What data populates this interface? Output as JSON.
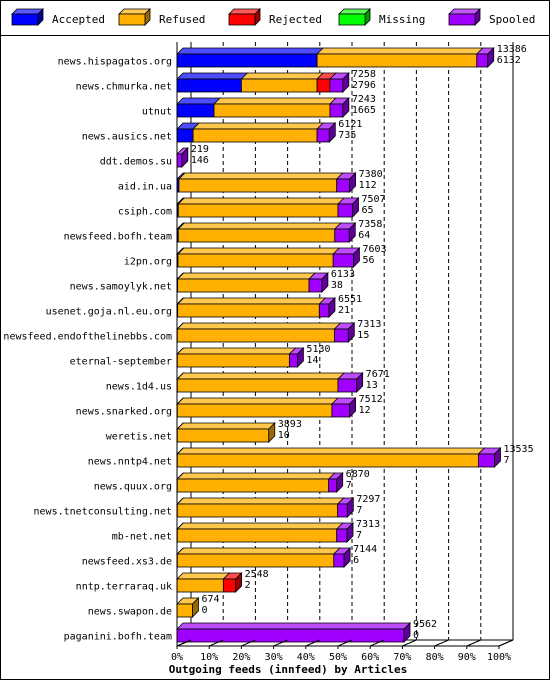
{
  "chart_data": {
    "type": "bar",
    "orientation": "horizontal",
    "stacked": true,
    "percent_scale": true,
    "xlabel": "Outgoing feeds (innfeed) by Articles",
    "xticks": [
      "0%",
      "10%",
      "20%",
      "30%",
      "40%",
      "50%",
      "60%",
      "70%",
      "80%",
      "90%",
      "100%"
    ],
    "xlim": [
      0,
      100
    ],
    "legend_placement": "top",
    "series": [
      {
        "name": "Accepted",
        "color": "#0000ff"
      },
      {
        "name": "Refused",
        "color": "#ffb000"
      },
      {
        "name": "Rejected",
        "color": "#ff0000"
      },
      {
        "name": "Missing",
        "color": "#00ff00"
      },
      {
        "name": "Spooled",
        "color": "#a000ff"
      }
    ],
    "rows": [
      {
        "name": "news.hispagatos.org",
        "total": "13386",
        "accepted": "6132",
        "pct": [
          43.5,
          49.6,
          0,
          0,
          3.4
        ]
      },
      {
        "name": "news.chmurka.net",
        "total": "7258",
        "accepted": "2796",
        "pct": [
          20.0,
          23.5,
          4.0,
          0,
          4.0
        ]
      },
      {
        "name": "utnut",
        "total": "7243",
        "accepted": "1665",
        "pct": [
          11.5,
          36.0,
          0,
          0,
          4.0
        ]
      },
      {
        "name": "news.ausics.net",
        "total": "6121",
        "accepted": "735",
        "pct": [
          5.0,
          38.5,
          0,
          0,
          3.8
        ]
      },
      {
        "name": "ddt.demos.su",
        "total": "219",
        "accepted": "146",
        "pct": [
          0,
          0,
          0,
          0,
          1.5
        ]
      },
      {
        "name": "aid.in.ua",
        "total": "7380",
        "accepted": "112",
        "pct": [
          0.6,
          49.0,
          0,
          0,
          4.0
        ]
      },
      {
        "name": "csiph.com",
        "total": "7507",
        "accepted": "65",
        "pct": [
          0.4,
          49.6,
          0,
          0,
          4.5
        ]
      },
      {
        "name": "newsfeed.bofh.team",
        "total": "7358",
        "accepted": "64",
        "pct": [
          0.4,
          48.6,
          0,
          0,
          4.5
        ]
      },
      {
        "name": "i2pn.org",
        "total": "7603",
        "accepted": "56",
        "pct": [
          0.3,
          48.2,
          0,
          0,
          6.3
        ]
      },
      {
        "name": "news.samoylyk.net",
        "total": "6133",
        "accepted": "38",
        "pct": [
          0.2,
          40.8,
          0,
          0,
          4.0
        ]
      },
      {
        "name": "usenet.goja.nl.eu.org",
        "total": "6551",
        "accepted": "21",
        "pct": [
          0.2,
          44.0,
          0,
          0,
          3.0
        ]
      },
      {
        "name": "newsfeed.endofthelinebbs.com",
        "total": "7313",
        "accepted": "15",
        "pct": [
          0.1,
          48.8,
          0,
          0,
          4.3
        ]
      },
      {
        "name": "eternal-september",
        "total": "5130",
        "accepted": "14",
        "pct": [
          0.1,
          34.8,
          0,
          0,
          2.5
        ]
      },
      {
        "name": "news.1d4.us",
        "total": "7671",
        "accepted": "13",
        "pct": [
          0.1,
          49.9,
          0,
          0,
          5.8
        ]
      },
      {
        "name": "news.snarked.org",
        "total": "7512",
        "accepted": "12",
        "pct": [
          0.1,
          48.0,
          0,
          0,
          5.5
        ]
      },
      {
        "name": "weretis.net",
        "total": "3893",
        "accepted": "10",
        "pct": [
          0.1,
          28.4,
          0,
          0,
          0
        ]
      },
      {
        "name": "news.nntp4.net",
        "total": "13535",
        "accepted": "7",
        "pct": [
          0.1,
          93.5,
          0,
          0,
          5.0
        ]
      },
      {
        "name": "news.quux.org",
        "total": "6870",
        "accepted": "7",
        "pct": [
          0.1,
          47.0,
          0,
          0,
          2.5
        ]
      },
      {
        "name": "news.tnetconsulting.net",
        "total": "7297",
        "accepted": "7",
        "pct": [
          0.1,
          49.8,
          0,
          0,
          3.0
        ]
      },
      {
        "name": "mb-net.net",
        "total": "7313",
        "accepted": "7",
        "pct": [
          0.1,
          49.5,
          0,
          0,
          3.2
        ]
      },
      {
        "name": "newsfeed.xs3.de",
        "total": "7144",
        "accepted": "6",
        "pct": [
          0.1,
          48.6,
          0,
          0,
          3.2
        ]
      },
      {
        "name": "nntp.terraraq.uk",
        "total": "2548",
        "accepted": "2",
        "pct": [
          0,
          14.4,
          3.8,
          0,
          0
        ]
      },
      {
        "name": "news.swapon.de",
        "total": "674",
        "accepted": "0",
        "pct": [
          0,
          4.8,
          0,
          0,
          0
        ]
      },
      {
        "name": "paganini.bofh.team",
        "total": "9562",
        "accepted": "0",
        "pct": [
          0,
          0,
          0,
          0,
          70.5
        ]
      }
    ]
  }
}
